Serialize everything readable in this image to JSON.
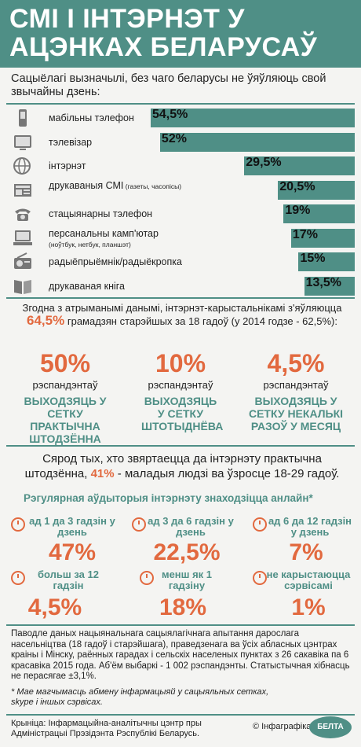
{
  "title": "СМІ І ІНТЭРНЭТ У АЦЭНКАХ БЕЛАРУСАЎ",
  "intro": "Сацыёлагі вызначылі, без чаго беларусы не ўяўляюць свой звычайны дзень:",
  "chart_data": {
    "type": "bar",
    "categories": [
      "мабільны тэлефон",
      "тэлевізар",
      "інтэрнэт",
      "друкаваныя СМІ (газеты, часопісы)",
      "стацыянарны тэлефон",
      "персанальны камп'ютар (ноўтбук, нетбук, планшэт)",
      "радыёпрыёмнік/радыёкропка",
      "друкаваная кніга"
    ],
    "values": [
      54.5,
      52,
      29.5,
      20.5,
      19,
      17,
      15,
      13.5
    ],
    "value_labels": [
      "54,5%",
      "52%",
      "29,5%",
      "20,5%",
      "19%",
      "17%",
      "15%",
      "13,5%"
    ]
  },
  "bars": [
    {
      "label": "мабільны тэлефон",
      "sub": "",
      "icon": "mobile-phone-icon"
    },
    {
      "label": "тэлевізар",
      "sub": "",
      "icon": "tv-icon"
    },
    {
      "label": "інтэрнэт",
      "sub": "",
      "icon": "internet-globe-icon"
    },
    {
      "label": "друкаваныя СМІ",
      "sub": "(газеты, часопісы)",
      "icon": "newspaper-icon"
    },
    {
      "label": "стацыянарны тэлефон",
      "sub": "",
      "icon": "landline-phone-icon"
    },
    {
      "label": "персанальны камп'ютар",
      "sub": "(ноўтбук, нетбук, планшэт)",
      "icon": "computer-icon"
    },
    {
      "label": "радыёпрыёмнік/радыёкропка",
      "sub": "",
      "icon": "radio-icon"
    },
    {
      "label": "друкаваная кніга",
      "sub": "",
      "icon": "book-icon"
    }
  ],
  "survey": {
    "line1": "Згодна з атрыманымі данымі, інтэрнэт-карыстальнікамі з'яўляюцца",
    "pct": "64,5%",
    "line2": "грамадзян старэйшых за 18 гадоў (у 2014 годзе - 62,5%):"
  },
  "groups": [
    {
      "pct": "50%",
      "label": "рэспандэнтаў",
      "desc": "ВЫХОДЗЯЦЬ У СЕТКУ ПРАКТЫЧНА ШТОДЗЁННА"
    },
    {
      "pct": "10%",
      "label": "рэспандэнтаў",
      "desc": "ВЫХОДЗЯЦЬ У СЕТКУ ШТОТЫДНЁВА"
    },
    {
      "pct": "4,5%",
      "label": "рэспандэнтаў",
      "desc": "ВЫХОДЗЯЦЬ У СЕТКУ НЕКАЛЬКІ РАЗОЎ У МЕСЯЦ"
    }
  ],
  "daily": {
    "part1": "Сярод тых, хто звяртаецца да інтэрнэту практычна штодзённа,",
    "pct": "41%",
    "part2": "- маладыя людзі ва ўзросце 18-29 гадоў."
  },
  "audience_title": "Рэгулярная аўдыторыя інтэрнэту знаходзіцца анлайн*",
  "times": [
    {
      "label": "ад 1 да 3 гадзін у дзень",
      "pct": "47%"
    },
    {
      "label": "ад 3 да 6 гадзін у дзень",
      "pct": "22,5%"
    },
    {
      "label": "ад 6 да 12 гадзін у дзень",
      "pct": "7%"
    },
    {
      "label": "больш за 12 гадзін",
      "pct": "4,5%"
    },
    {
      "label": "менш як 1 гадзіну",
      "pct": "18%"
    },
    {
      "label": "не карыстаюцца сэрвісамі",
      "pct": "1%"
    }
  ],
  "note": "Паводле даных нацыянальнага сацыялагічнага апытання дарослага насельніцтва (18 гадоў і старэйшага), праведзенага ва ўсіх абласных цэнтрах краіны і Мінску, раённых гарадах і сельскіх населеных пунктах з 26 сакавіка па 6 красавіка 2015 года. Аб'ём выбаркі - 1 002 рэспандэнты. Статыстычная хібнасць не перасягае ±3,1%.",
  "footnote": "* Мае магчымасць абмену інфармацыяй у сацыяльных сетках, skype і іншых сэрвісах.",
  "source": "Крыніца: Інфармацыйна-аналітычны цэнтр пры Адміністрацыі Прэзідэнта Рэспублікі Беларусь.",
  "credit": "© Інфаграфіка",
  "logo": "БЕЛТА",
  "colors": {
    "teal": "#4f8f86",
    "orange": "#e2693f"
  }
}
